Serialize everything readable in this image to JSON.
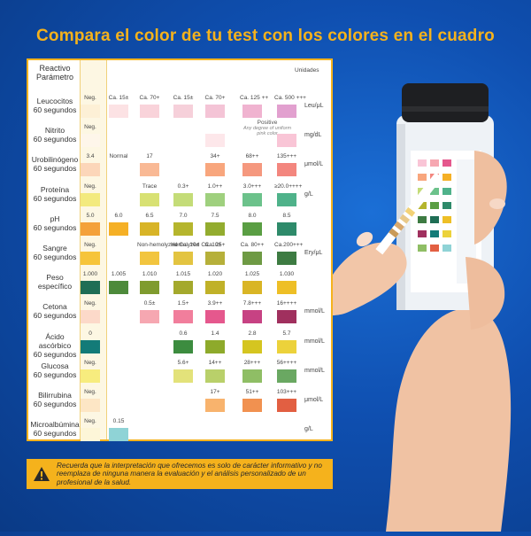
{
  "headline": "Compara el color de tu test con los colores en el cuadro",
  "chart": {
    "header": [
      "Reactivo",
      "Parámetro"
    ],
    "units_header": "Unidades",
    "note": {
      "title": "Positive",
      "body": "Any degree of uniform pink color"
    },
    "rows": [
      {
        "name": [
          "Leucocitos",
          "60 segundos"
        ],
        "unit": "Leu/μL",
        "cells": [
          {
            "label": "Neg.",
            "color": "#fdf0d6"
          },
          {
            "label": "Ca. 15±",
            "color": "#fce2e4"
          },
          {
            "label": "Ca. 70+",
            "color": "#f9d3da"
          },
          {
            "label": "Ca. 15±",
            "color": "#f6d0da"
          },
          {
            "label": "Ca. 70+",
            "color": "#f4c4d6"
          },
          {
            "label": "Ca. 125 ++",
            "color": "#f0b3d0"
          },
          {
            "label": "Ca. 500 +++",
            "color": "#e2a0cf"
          }
        ]
      },
      {
        "name": [
          "Nitrito",
          "60 segundos"
        ],
        "unit": "mg/dL",
        "cells": [
          {
            "label": "Neg.",
            "color": "#fef6ea"
          },
          null,
          null,
          null,
          {
            "label": "",
            "color": "#fde7ea"
          },
          null,
          {
            "label": "",
            "color": "#f9c5d6"
          }
        ]
      },
      {
        "name": [
          "Urobilinógeno",
          "60 segundos"
        ],
        "unit": "μmol/L",
        "cells": [
          {
            "label": "3.4",
            "color": "#fcd6b9"
          },
          {
            "label": "Normal",
            "color": null
          },
          {
            "label": "17",
            "color": "#f9b995"
          },
          null,
          {
            "label": "34+",
            "color": "#f8a67d"
          },
          {
            "label": "68++",
            "color": "#f5987e"
          },
          {
            "label": "135+++",
            "color": "#f3867e"
          }
        ]
      },
      {
        "name": [
          "Proteína",
          "60 segundos"
        ],
        "unit": "g/L",
        "cells": [
          {
            "label": "Neg.",
            "color": "#f3ea7e"
          },
          null,
          {
            "label": "Trace",
            "color": "#d8e173"
          },
          {
            "label": "0.3+",
            "color": "#c4dc78"
          },
          {
            "label": "1.0++",
            "color": "#9fd07e"
          },
          {
            "label": "3.0+++",
            "color": "#6cc28b"
          },
          {
            "label": "≥20.0++++",
            "color": "#4fb28a"
          }
        ]
      },
      {
        "name": [
          "pH",
          "60 segundos"
        ],
        "unit": "",
        "cells": [
          {
            "label": "5.0",
            "color": "#f4a13a"
          },
          {
            "label": "6.0",
            "color": "#f5b026"
          },
          {
            "label": "6.5",
            "color": "#d8b427"
          },
          {
            "label": "7.0",
            "color": "#b5b52d"
          },
          {
            "label": "7.5",
            "color": "#93ac2f"
          },
          {
            "label": "8.0",
            "color": "#5a9e43"
          },
          {
            "label": "8.5",
            "color": "#2e8a6a"
          }
        ]
      },
      {
        "name": [
          "Sangre",
          "60 segundos"
        ],
        "unit": "Ery/μL",
        "cells": [
          {
            "label": "Neg.",
            "color": "#f6c43a"
          },
          null,
          {
            "label": "Non-hemolyzed Ca. 10±",
            "color": "#f2c53f"
          },
          {
            "label": "Hemolyzed Ca. 10±",
            "color": "#e3c441"
          },
          {
            "label": "Ca. 25+",
            "color": "#b6b03a"
          },
          {
            "label": "Ca. 80++",
            "color": "#6e9a44"
          },
          {
            "label": "Ca.200+++",
            "color": "#3d7b42"
          }
        ]
      },
      {
        "name": [
          "Peso específico",
          ""
        ],
        "unit": "",
        "cells": [
          {
            "label": "1.000",
            "color": "#1f6e55"
          },
          {
            "label": "1.005",
            "color": "#4d8a3b"
          },
          {
            "label": "1.010",
            "color": "#7f9b2e"
          },
          {
            "label": "1.015",
            "color": "#a4a92c"
          },
          {
            "label": "1.020",
            "color": "#c0b128"
          },
          {
            "label": "1.025",
            "color": "#d9b525"
          },
          {
            "label": "1.030",
            "color": "#eebf26"
          }
        ]
      },
      {
        "name": [
          "Cetona",
          "60 segundos"
        ],
        "unit": "mmol/L",
        "cells": [
          {
            "label": "Neg.",
            "color": "#fcd9c9"
          },
          null,
          {
            "label": "0.5±",
            "color": "#f6a7b1"
          },
          {
            "label": "1.5+",
            "color": "#f17e9c"
          },
          {
            "label": "3.9++",
            "color": "#e5588d"
          },
          {
            "label": "7.8+++",
            "color": "#c74283"
          },
          {
            "label": "16++++",
            "color": "#a0305e"
          }
        ]
      },
      {
        "name": [
          "Ácido ascórbico",
          "60 segundos"
        ],
        "unit": "mmol/L",
        "cells": [
          {
            "label": "0",
            "color": "#137b78"
          },
          null,
          null,
          {
            "label": "0.6",
            "color": "#3c8c3f"
          },
          {
            "label": "1.4",
            "color": "#8eaa2b"
          },
          {
            "label": "2.8",
            "color": "#d5c520"
          },
          {
            "label": "5.7",
            "color": "#ecd23b"
          }
        ]
      },
      {
        "name": [
          "Glucosa",
          "60 segundos"
        ],
        "unit": "mmol/L",
        "cells": [
          {
            "label": "Neg.",
            "color": "#f7ec7e"
          },
          null,
          null,
          {
            "label": "5.6+",
            "color": "#e3e27a"
          },
          {
            "label": "14++",
            "color": "#b9d06a"
          },
          {
            "label": "28+++",
            "color": "#8fbe65"
          },
          {
            "label": "56++++",
            "color": "#6aa862"
          }
        ]
      },
      {
        "name": [
          "Bilirrubina",
          "60 segundos"
        ],
        "unit": "μmol/L",
        "cells": [
          {
            "label": "Neg.",
            "color": "#fde6c5"
          },
          null,
          null,
          null,
          {
            "label": "17+",
            "color": "#f8b36d"
          },
          {
            "label": "51++",
            "color": "#f19150"
          },
          {
            "label": "103+++",
            "color": "#e25f42"
          }
        ]
      },
      {
        "name": [
          "Microalbúmina",
          "60 segundos"
        ],
        "unit": "g/L",
        "cells": [
          {
            "label": "Neg.",
            "color": "#fdf6d8"
          },
          {
            "label": "0.15",
            "color": "#8fd3d6"
          },
          null,
          null,
          null,
          null,
          null
        ]
      }
    ]
  },
  "warning": {
    "text": "Recuerda que la interpretación que ofrecemos es solo de carácter informativo y no reemplaza de ninguna manera la evaluación y el análisis personalizado de un profesional de la salud."
  }
}
